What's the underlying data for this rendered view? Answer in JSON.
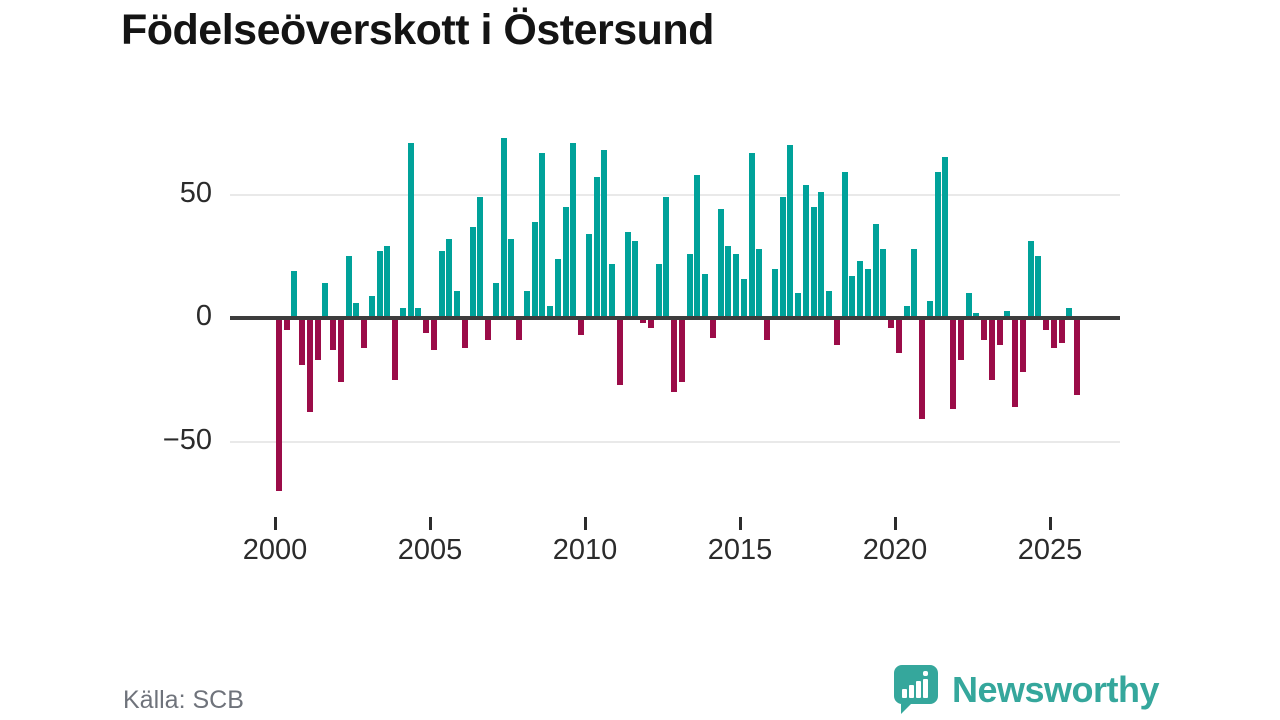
{
  "logo": {
    "text": "Newsworthy",
    "color": "#35a79c"
  },
  "chart_data": {
    "type": "bar",
    "title": "Födelseöverskott i Östersund",
    "source": "Källa: SCB",
    "frequency": "quarterly",
    "x_axis": {
      "tick_labels": [
        "2000",
        "2005",
        "2010",
        "2015",
        "2020",
        "2025"
      ],
      "range": [
        "2000 Q1",
        "2025 Q4"
      ]
    },
    "y_axis": {
      "ticks": [
        {
          "value": 50,
          "label": "50"
        },
        {
          "value": 0,
          "label": "0"
        },
        {
          "value": -50,
          "label": "−50"
        }
      ],
      "range": [
        -75,
        80
      ],
      "grid": true
    },
    "colors": {
      "positive": "#00a29a",
      "negative": "#9b0c48",
      "axis": "#3d3d3d"
    },
    "series": [
      {
        "year": 2000,
        "values": [
          -70,
          -5,
          19,
          -19
        ]
      },
      {
        "year": 2001,
        "values": [
          -38,
          -17,
          14,
          -13
        ]
      },
      {
        "year": 2002,
        "values": [
          -26,
          25,
          6,
          -12
        ]
      },
      {
        "year": 2003,
        "values": [
          9,
          27,
          29,
          -25
        ]
      },
      {
        "year": 2004,
        "values": [
          4,
          71,
          4,
          -6
        ]
      },
      {
        "year": 2005,
        "values": [
          -13,
          27,
          32,
          11
        ]
      },
      {
        "year": 2006,
        "values": [
          -12,
          37,
          49,
          -9
        ]
      },
      {
        "year": 2007,
        "values": [
          14,
          73,
          32,
          -9
        ]
      },
      {
        "year": 2008,
        "values": [
          11,
          39,
          67,
          5
        ]
      },
      {
        "year": 2009,
        "values": [
          24,
          45,
          71,
          -7
        ]
      },
      {
        "year": 2010,
        "values": [
          34,
          57,
          68,
          22
        ]
      },
      {
        "year": 2011,
        "values": [
          -27,
          35,
          31,
          -2
        ]
      },
      {
        "year": 2012,
        "values": [
          -4,
          22,
          49,
          -30
        ]
      },
      {
        "year": 2013,
        "values": [
          -26,
          26,
          58,
          18
        ]
      },
      {
        "year": 2014,
        "values": [
          -8,
          44,
          29,
          26
        ]
      },
      {
        "year": 2015,
        "values": [
          16,
          67,
          28,
          -9
        ]
      },
      {
        "year": 2016,
        "values": [
          20,
          49,
          70,
          10
        ]
      },
      {
        "year": 2017,
        "values": [
          54,
          45,
          51,
          11
        ]
      },
      {
        "year": 2018,
        "values": [
          -11,
          59,
          17,
          23
        ]
      },
      {
        "year": 2019,
        "values": [
          20,
          38,
          28,
          -4
        ]
      },
      {
        "year": 2020,
        "values": [
          -14,
          5,
          28,
          -41
        ]
      },
      {
        "year": 2021,
        "values": [
          7,
          59,
          65,
          -37
        ]
      },
      {
        "year": 2022,
        "values": [
          -17,
          10,
          2,
          -9
        ]
      },
      {
        "year": 2023,
        "values": [
          -25,
          -11,
          3,
          -36
        ]
      },
      {
        "year": 2024,
        "values": [
          -22,
          31,
          25,
          -5
        ]
      },
      {
        "year": 2025,
        "values": [
          -12,
          -10,
          4,
          -31
        ]
      }
    ]
  }
}
